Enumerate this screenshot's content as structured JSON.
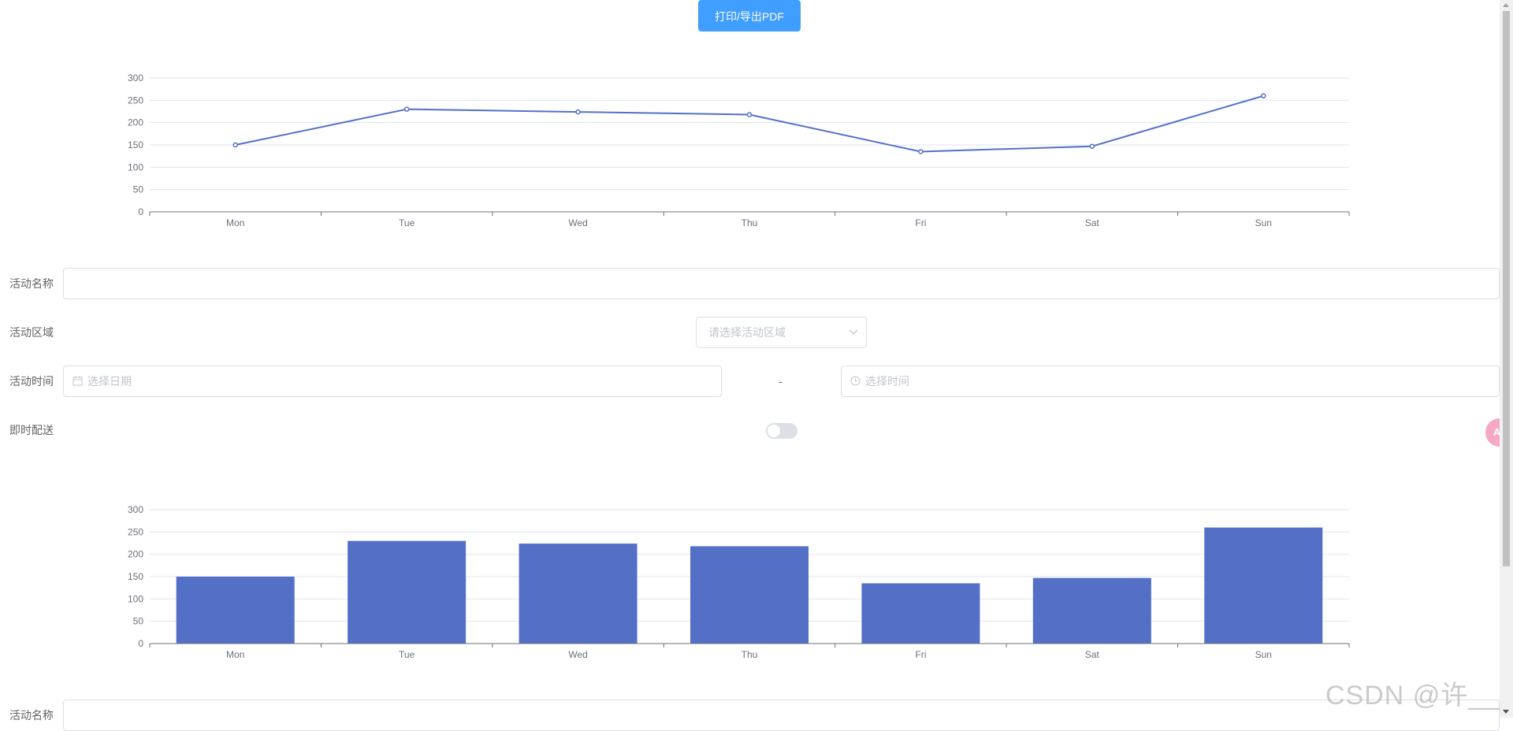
{
  "toolbar": {
    "print_label": "打印/导出PDF"
  },
  "chart_data": [
    {
      "type": "line",
      "categories": [
        "Mon",
        "Tue",
        "Wed",
        "Thu",
        "Fri",
        "Sat",
        "Sun"
      ],
      "values": [
        150,
        230,
        224,
        218,
        135,
        147,
        260
      ],
      "yticks": [
        0,
        50,
        100,
        150,
        200,
        250,
        300
      ],
      "ylim": [
        0,
        300
      ],
      "grid": true,
      "color": "#5470c6"
    },
    {
      "type": "bar",
      "categories": [
        "Mon",
        "Tue",
        "Wed",
        "Thu",
        "Fri",
        "Sat",
        "Sun"
      ],
      "values": [
        150,
        230,
        224,
        218,
        135,
        147,
        260
      ],
      "yticks": [
        0,
        50,
        100,
        150,
        200,
        250,
        300
      ],
      "ylim": [
        0,
        300
      ],
      "grid": true,
      "color": "#5470c6"
    }
  ],
  "form": {
    "name_label": "活动名称",
    "name_value": "",
    "region_label": "活动区域",
    "region_placeholder": "请选择活动区域",
    "time_label": "活动时间",
    "date_placeholder": "选择日期",
    "separator": "-",
    "time_placeholder": "选择时间",
    "delivery_label": "即时配送",
    "delivery_on": false
  },
  "form2": {
    "name_label": "活动名称"
  },
  "widgets": {
    "translate_label": "A"
  },
  "watermark": "CSDN @许____"
}
